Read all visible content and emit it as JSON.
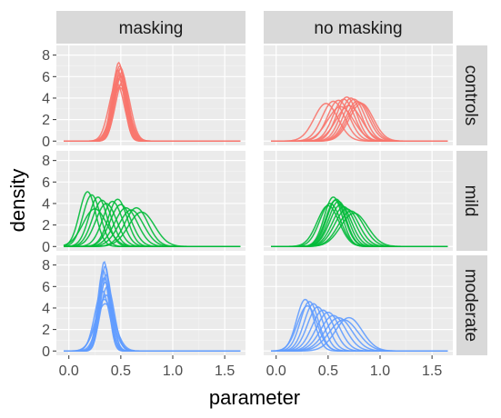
{
  "chart_data": {
    "type": "line",
    "xlabel": "parameter",
    "ylabel": "density",
    "xlim": [
      -0.12,
      1.7
    ],
    "ylim": [
      -0.4,
      8.9
    ],
    "x_ticks": [
      0,
      0.5,
      1,
      1.5
    ],
    "x_tick_labels": [
      "0.0",
      "0.5",
      "1.0",
      "1.5"
    ],
    "y_ticks": [
      0,
      2,
      4,
      6,
      8
    ],
    "y_tick_labels": [
      "0",
      "2",
      "4",
      "6",
      "8"
    ],
    "grid": true,
    "legend": "none",
    "x_range_curves": [
      -0.05,
      1.65
    ],
    "columns": [
      "masking",
      "no masking"
    ],
    "rows": [
      "controls",
      "mild",
      "moderate"
    ],
    "row_colors": {
      "controls": "#F8766D",
      "mild": "#00BA38",
      "moderate": "#619CFF"
    },
    "panels": [
      {
        "row": "controls",
        "col": "masking",
        "curves": [
          {
            "mean": 0.48,
            "peak": 7.3
          },
          {
            "mean": 0.49,
            "peak": 7.0
          },
          {
            "mean": 0.5,
            "peak": 6.8
          },
          {
            "mean": 0.47,
            "peak": 6.6
          },
          {
            "mean": 0.51,
            "peak": 6.4
          },
          {
            "mean": 0.49,
            "peak": 6.2
          },
          {
            "mean": 0.5,
            "peak": 6.0
          },
          {
            "mean": 0.48,
            "peak": 5.8
          },
          {
            "mean": 0.52,
            "peak": 5.6
          },
          {
            "mean": 0.46,
            "peak": 5.4
          },
          {
            "mean": 0.5,
            "peak": 5.2
          },
          {
            "mean": 0.49,
            "peak": 5.0
          }
        ]
      },
      {
        "row": "controls",
        "col": "no masking",
        "curves": [
          {
            "mean": 0.48,
            "peak": 3.5
          },
          {
            "mean": 0.55,
            "peak": 3.7
          },
          {
            "mean": 0.6,
            "peak": 3.8
          },
          {
            "mean": 0.65,
            "peak": 3.9
          },
          {
            "mean": 0.68,
            "peak": 4.1
          },
          {
            "mean": 0.72,
            "peak": 4.0
          },
          {
            "mean": 0.75,
            "peak": 3.9
          },
          {
            "mean": 0.78,
            "peak": 3.7
          },
          {
            "mean": 0.8,
            "peak": 3.6
          },
          {
            "mean": 0.82,
            "peak": 3.5
          },
          {
            "mean": 0.7,
            "peak": 3.3
          },
          {
            "mean": 0.62,
            "peak": 3.2
          }
        ]
      },
      {
        "row": "mild",
        "col": "masking",
        "curves": [
          {
            "mean": 0.18,
            "peak": 5.1
          },
          {
            "mean": 0.22,
            "peak": 4.8
          },
          {
            "mean": 0.28,
            "peak": 4.6
          },
          {
            "mean": 0.32,
            "peak": 4.3
          },
          {
            "mean": 0.36,
            "peak": 4.0
          },
          {
            "mean": 0.42,
            "peak": 4.2
          },
          {
            "mean": 0.47,
            "peak": 4.4
          },
          {
            "mean": 0.5,
            "peak": 3.9
          },
          {
            "mean": 0.55,
            "peak": 3.6
          },
          {
            "mean": 0.6,
            "peak": 3.4
          },
          {
            "mean": 0.65,
            "peak": 3.6
          },
          {
            "mean": 0.7,
            "peak": 3.2
          },
          {
            "mean": 0.25,
            "peak": 3.5
          }
        ]
      },
      {
        "row": "mild",
        "col": "no masking",
        "curves": [
          {
            "mean": 0.55,
            "peak": 4.6
          },
          {
            "mean": 0.58,
            "peak": 4.4
          },
          {
            "mean": 0.6,
            "peak": 4.2
          },
          {
            "mean": 0.52,
            "peak": 4.0
          },
          {
            "mean": 0.62,
            "peak": 3.9
          },
          {
            "mean": 0.65,
            "peak": 3.7
          },
          {
            "mean": 0.68,
            "peak": 3.5
          },
          {
            "mean": 0.5,
            "peak": 3.8
          },
          {
            "mean": 0.72,
            "peak": 3.3
          },
          {
            "mean": 0.57,
            "peak": 4.3
          },
          {
            "mean": 0.75,
            "peak": 3.1
          }
        ]
      },
      {
        "row": "moderate",
        "col": "masking",
        "curves": [
          {
            "mean": 0.34,
            "peak": 8.3
          },
          {
            "mean": 0.35,
            "peak": 7.9
          },
          {
            "mean": 0.33,
            "peak": 7.5
          },
          {
            "mean": 0.36,
            "peak": 7.1
          },
          {
            "mean": 0.34,
            "peak": 6.8
          },
          {
            "mean": 0.35,
            "peak": 6.4
          },
          {
            "mean": 0.37,
            "peak": 6.0
          },
          {
            "mean": 0.32,
            "peak": 5.6
          },
          {
            "mean": 0.36,
            "peak": 5.2
          },
          {
            "mean": 0.34,
            "peak": 4.8
          },
          {
            "mean": 0.35,
            "peak": 4.4
          }
        ]
      },
      {
        "row": "moderate",
        "col": "no masking",
        "curves": [
          {
            "mean": 0.28,
            "peak": 4.8
          },
          {
            "mean": 0.32,
            "peak": 4.6
          },
          {
            "mean": 0.36,
            "peak": 4.4
          },
          {
            "mean": 0.4,
            "peak": 4.1
          },
          {
            "mean": 0.45,
            "peak": 3.8
          },
          {
            "mean": 0.5,
            "peak": 3.6
          },
          {
            "mean": 0.55,
            "peak": 3.3
          },
          {
            "mean": 0.6,
            "peak": 3.1
          },
          {
            "mean": 0.65,
            "peak": 2.9
          },
          {
            "mean": 0.7,
            "peak": 3.1
          },
          {
            "mean": 0.3,
            "peak": 4.2
          }
        ]
      }
    ]
  }
}
